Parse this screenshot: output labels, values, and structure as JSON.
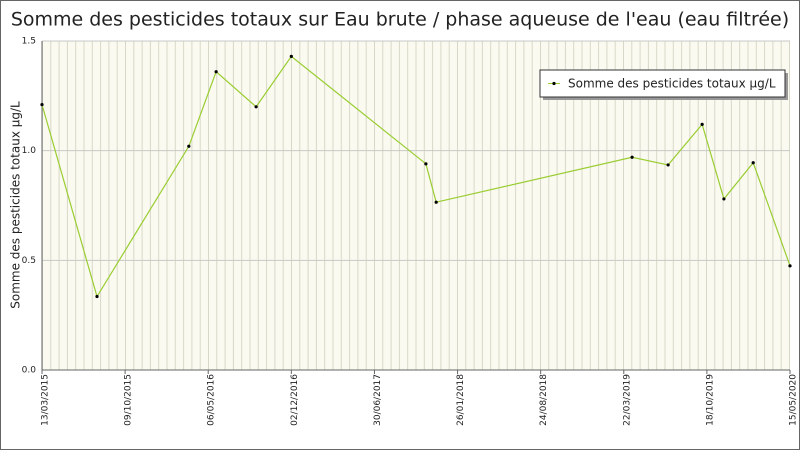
{
  "chart_data": {
    "type": "line",
    "title": "Somme des pesticides totaux sur Eau brute / phase aqueuse de l'eau (eau filtrée)",
    "ylabel": "Somme des pesticides totaux µg/L",
    "x": [
      "2015-03-13",
      "2015-07-30",
      "2016-03-18",
      "2016-05-26",
      "2016-09-04",
      "2016-12-02",
      "2017-11-07",
      "2017-12-03",
      "2019-04-12",
      "2019-07-12",
      "2019-10-06",
      "2019-11-30",
      "2020-02-12",
      "2020-05-15"
    ],
    "series": [
      {
        "name": "Somme des pesticides totaux µg/L",
        "color": "#9acd32",
        "values": [
          1.21,
          0.335,
          1.02,
          1.36,
          1.2,
          1.43,
          0.94,
          0.765,
          0.97,
          0.935,
          1.12,
          0.78,
          0.945,
          0.475
        ]
      }
    ],
    "xlim": [
      "2015-03-13",
      "2020-05-15"
    ],
    "xticks": [
      {
        "value": "2015-03-13",
        "label": "13/03/2015"
      },
      {
        "value": "2015-10-09",
        "label": "09/10/2015"
      },
      {
        "value": "2016-05-06",
        "label": "06/05/2016"
      },
      {
        "value": "2016-12-02",
        "label": "02/12/2016"
      },
      {
        "value": "2017-06-30",
        "label": "30/06/2017"
      },
      {
        "value": "2018-01-26",
        "label": "26/01/2018"
      },
      {
        "value": "2018-08-24",
        "label": "24/08/2018"
      },
      {
        "value": "2019-03-22",
        "label": "22/03/2019"
      },
      {
        "value": "2019-10-18",
        "label": "18/10/2019"
      },
      {
        "value": "2020-05-15",
        "label": "15/05/2020"
      }
    ],
    "ylim": [
      0,
      1.5
    ],
    "yticks": [
      {
        "value": 0,
        "label": "0.0"
      },
      {
        "value": 0.5,
        "label": "0.5"
      },
      {
        "value": 1,
        "label": "1.0"
      },
      {
        "value": 1.5,
        "label": "1.5"
      }
    ],
    "grid": true,
    "legend": "upper right"
  }
}
